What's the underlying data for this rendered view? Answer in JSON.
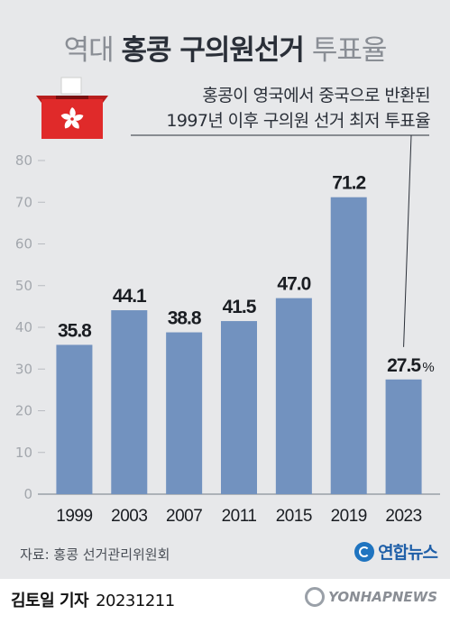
{
  "header": {
    "title_pre": "역대",
    "title_main": "홍콩 구의원선거",
    "title_post": "투표율"
  },
  "annotation": {
    "line1": "홍콩이 영국에서 중국으로 반환된",
    "line2": "1997년 이후 구의원 선거 최저 투표율"
  },
  "chart_data": {
    "type": "bar",
    "title": "역대 홍콩 구의원선거 투표율",
    "categories": [
      "1999",
      "2003",
      "2007",
      "2011",
      "2015",
      "2019",
      "2023"
    ],
    "values": [
      35.8,
      44.1,
      38.8,
      41.5,
      47.0,
      71.2,
      27.5
    ],
    "value_labels": [
      "35.8",
      "44.1",
      "38.8",
      "41.5",
      "47.0",
      "71.2",
      "27.5"
    ],
    "unit": "%",
    "yticks": [
      "0",
      "10",
      "20",
      "30",
      "40",
      "50",
      "60",
      "70",
      "80"
    ],
    "ylim": [
      0,
      80
    ],
    "grid": false,
    "bar_color": "#7292bf",
    "xlabel": "",
    "ylabel": ""
  },
  "icons": {
    "ballot_box": "ballot-box-icon",
    "hong_kong_flower": "bauhinia-icon"
  },
  "footer": {
    "source": "자료: 홍콩 선거관리위원회",
    "logo": "연합뉴스",
    "byline": "김토일 기자",
    "date": "20231211",
    "watermark": "YONHAPNEWS"
  },
  "colors": {
    "background": "#e7e8ea",
    "bar": "#7292bf",
    "ballot_red": "#e02a2a",
    "title_dark": "#2a2f38",
    "title_grey": "#8a8e95"
  }
}
